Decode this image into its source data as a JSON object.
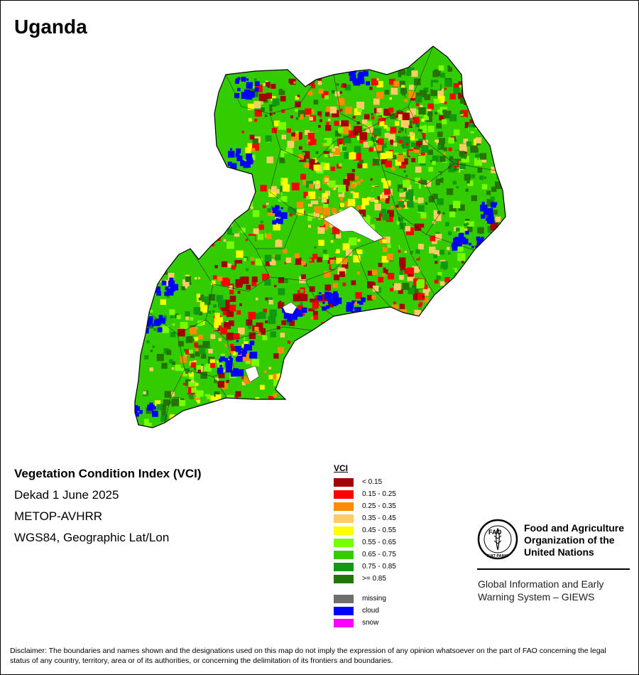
{
  "title": "Uganda",
  "info": {
    "index_name": "Vegetation Condition Index (VCI)",
    "period": "Dekad 1 June 2025",
    "sensor": "METOP-AVHRR",
    "projection": "WGS84, Geographic Lat/Lon"
  },
  "legend": {
    "title": "VCI",
    "classes": [
      {
        "label": "< 0.15",
        "color": "#a50000"
      },
      {
        "label": "0.15 - 0.25",
        "color": "#ff0000"
      },
      {
        "label": "0.25 - 0.35",
        "color": "#ff8c00"
      },
      {
        "label": "0.35 - 0.45",
        "color": "#ffcc66"
      },
      {
        "label": "0.45 - 0.55",
        "color": "#ffff00"
      },
      {
        "label": "0.55 - 0.65",
        "color": "#77ff00"
      },
      {
        "label": "0.65 - 0.75",
        "color": "#33cc00"
      },
      {
        "label": "0.75 - 0.85",
        "color": "#119911"
      },
      {
        "label": ">= 0.85",
        "color": "#267300"
      }
    ],
    "special": [
      {
        "label": "missing",
        "color": "#6e6e6e"
      },
      {
        "label": "cloud",
        "color": "#0000ff"
      },
      {
        "label": "snow",
        "color": "#ff00ff"
      }
    ]
  },
  "organization": {
    "name": "Food and Agriculture\nOrganization of the\nUnited Nations",
    "system": "Global Information and Early\nWarning System – GIEWS",
    "logo_text": "FAO",
    "logo_motto": "FIAT PANIS"
  },
  "disclaimer": "Disclaimer: The boundaries and names shown and the designations used on this map do not imply the expression of any opinion whatsoever on the part of FAO concerning the legal status of any country, territory, area or of its authorities, or concerning the delimitation of its frontiers and boundaries."
}
